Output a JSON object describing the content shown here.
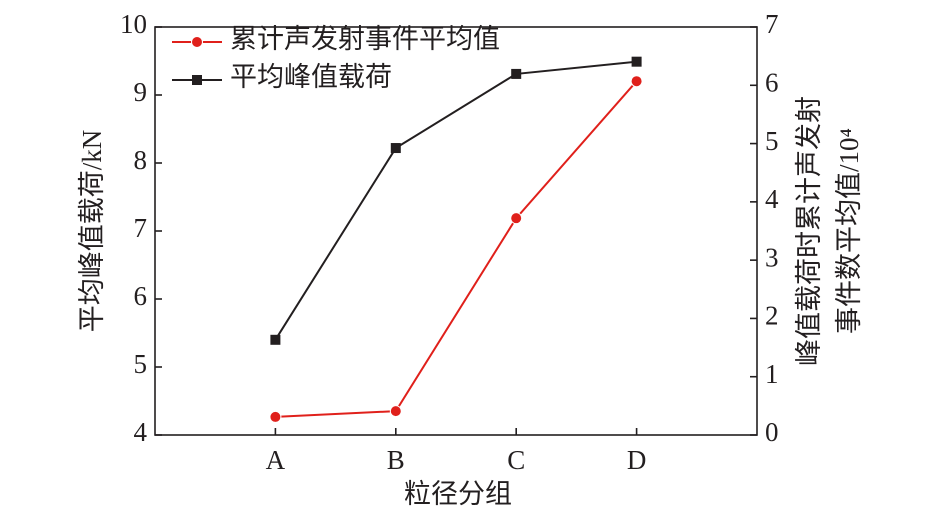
{
  "chart_data": {
    "type": "line",
    "x_label": "粒径分组",
    "y_label": "平均峰值载荷/kN",
    "y2_label": [
      "峰值载荷时累计声发射",
      "事件数平均值/10⁴"
    ],
    "categories": [
      "A",
      "B",
      "C",
      "D"
    ],
    "series": [
      {
        "name": "累计声发射事件平均值",
        "color": "#e0201b",
        "marker": "circle",
        "axis": "y2",
        "values": [
          0.31,
          0.41,
          3.72,
          6.07
        ]
      },
      {
        "name": "平均峰值载荷",
        "color": "#231f20",
        "marker": "square",
        "values": [
          5.4,
          8.22,
          9.31,
          9.49
        ]
      }
    ],
    "ylim": [
      4,
      10
    ],
    "yticks": [
      4,
      5,
      6,
      7,
      8,
      9,
      10
    ],
    "y2lim": [
      0,
      7
    ],
    "y2ticks": [
      0,
      1,
      2,
      3,
      4,
      5,
      6,
      7
    ],
    "legend": "top-left",
    "grid": false
  }
}
